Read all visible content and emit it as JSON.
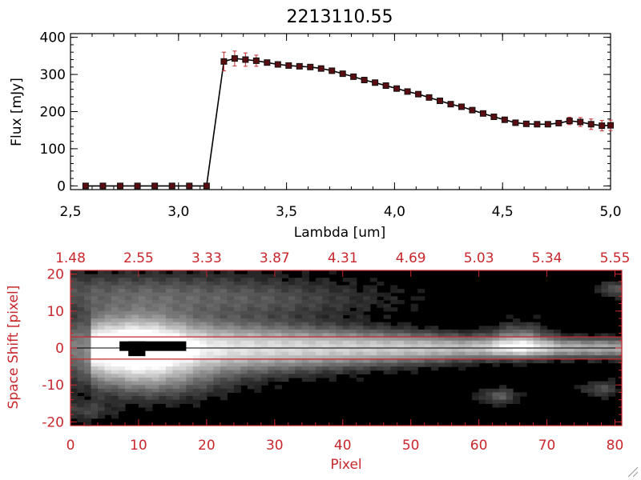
{
  "chart_data": [
    {
      "type": "line",
      "title": "2213110.55",
      "xlabel": "Lambda [um]",
      "ylabel": "Flux [mJy]",
      "xlim": [
        2.5,
        5.0
      ],
      "ylim": [
        -10,
        410
      ],
      "xticks": [
        "2.5",
        "3.0",
        "3.5",
        "4.0",
        "4.5",
        "5.0"
      ],
      "yticks": [
        "0",
        "100",
        "200",
        "300",
        "400"
      ],
      "series": [
        {
          "name": "flux",
          "x": [
            2.57,
            2.65,
            2.73,
            2.81,
            2.89,
            2.97,
            3.05,
            3.13,
            3.21,
            3.26,
            3.31,
            3.36,
            3.41,
            3.46,
            3.51,
            3.56,
            3.61,
            3.66,
            3.71,
            3.76,
            3.81,
            3.86,
            3.91,
            3.96,
            4.01,
            4.06,
            4.11,
            4.16,
            4.21,
            4.26,
            4.31,
            4.36,
            4.41,
            4.46,
            4.51,
            4.56,
            4.61,
            4.66,
            4.71,
            4.76,
            4.81,
            4.86,
            4.91,
            4.96,
            5.0
          ],
          "y": [
            0,
            0,
            0,
            0,
            0,
            0,
            0,
            0,
            335,
            343,
            340,
            337,
            332,
            327,
            324,
            322,
            320,
            316,
            310,
            302,
            294,
            285,
            278,
            270,
            262,
            254,
            247,
            238,
            229,
            220,
            213,
            204,
            195,
            186,
            178,
            170,
            167,
            166,
            166,
            169,
            175,
            172,
            166,
            162,
            163
          ],
          "yerr": [
            0,
            0,
            0,
            0,
            0,
            0,
            0,
            0,
            25,
            20,
            18,
            15,
            5,
            4,
            4,
            4,
            4,
            4,
            4,
            4,
            4,
            4,
            4,
            4,
            4,
            4,
            4,
            4,
            4,
            4,
            4,
            4,
            4,
            4,
            4,
            4,
            4,
            4,
            4,
            6,
            10,
            12,
            14,
            14,
            14
          ]
        }
      ]
    },
    {
      "type": "heatmap",
      "xlabel": "Pixel",
      "ylabel": "Space Shift [pixel]",
      "xlim": [
        0,
        81
      ],
      "ylim": [
        -21,
        21
      ],
      "xticks": [
        "0",
        "10",
        "20",
        "30",
        "40",
        "50",
        "60",
        "70",
        "80"
      ],
      "yticks": [
        "-20",
        "-10",
        "0",
        "10",
        "20"
      ],
      "top_axis_ticks": [
        "1.48",
        "2.55",
        "3.33",
        "3.87",
        "4.31",
        "4.69",
        "5.03",
        "5.34",
        "5.55"
      ],
      "center_line": 0,
      "aperture_lines": [
        3,
        -3
      ],
      "colormap": "grayscale"
    }
  ]
}
